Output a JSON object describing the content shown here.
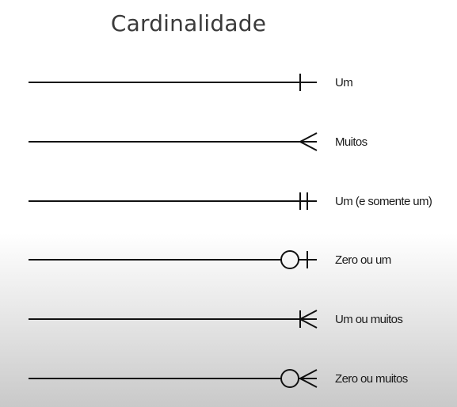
{
  "title": "Cardinalidade",
  "colors": {
    "stroke": "#111111",
    "title": "#3a3a3a",
    "label": "#1a1a1a"
  },
  "rows": [
    {
      "label": "Um",
      "notation": "one"
    },
    {
      "label": "Muitos",
      "notation": "many"
    },
    {
      "label": "Um (e somente um)",
      "notation": "one-and-only-one"
    },
    {
      "label": "Zero ou um",
      "notation": "zero-or-one"
    },
    {
      "label": "Um ou muitos",
      "notation": "one-or-many"
    },
    {
      "label": "Zero ou muitos",
      "notation": "zero-or-many"
    }
  ]
}
